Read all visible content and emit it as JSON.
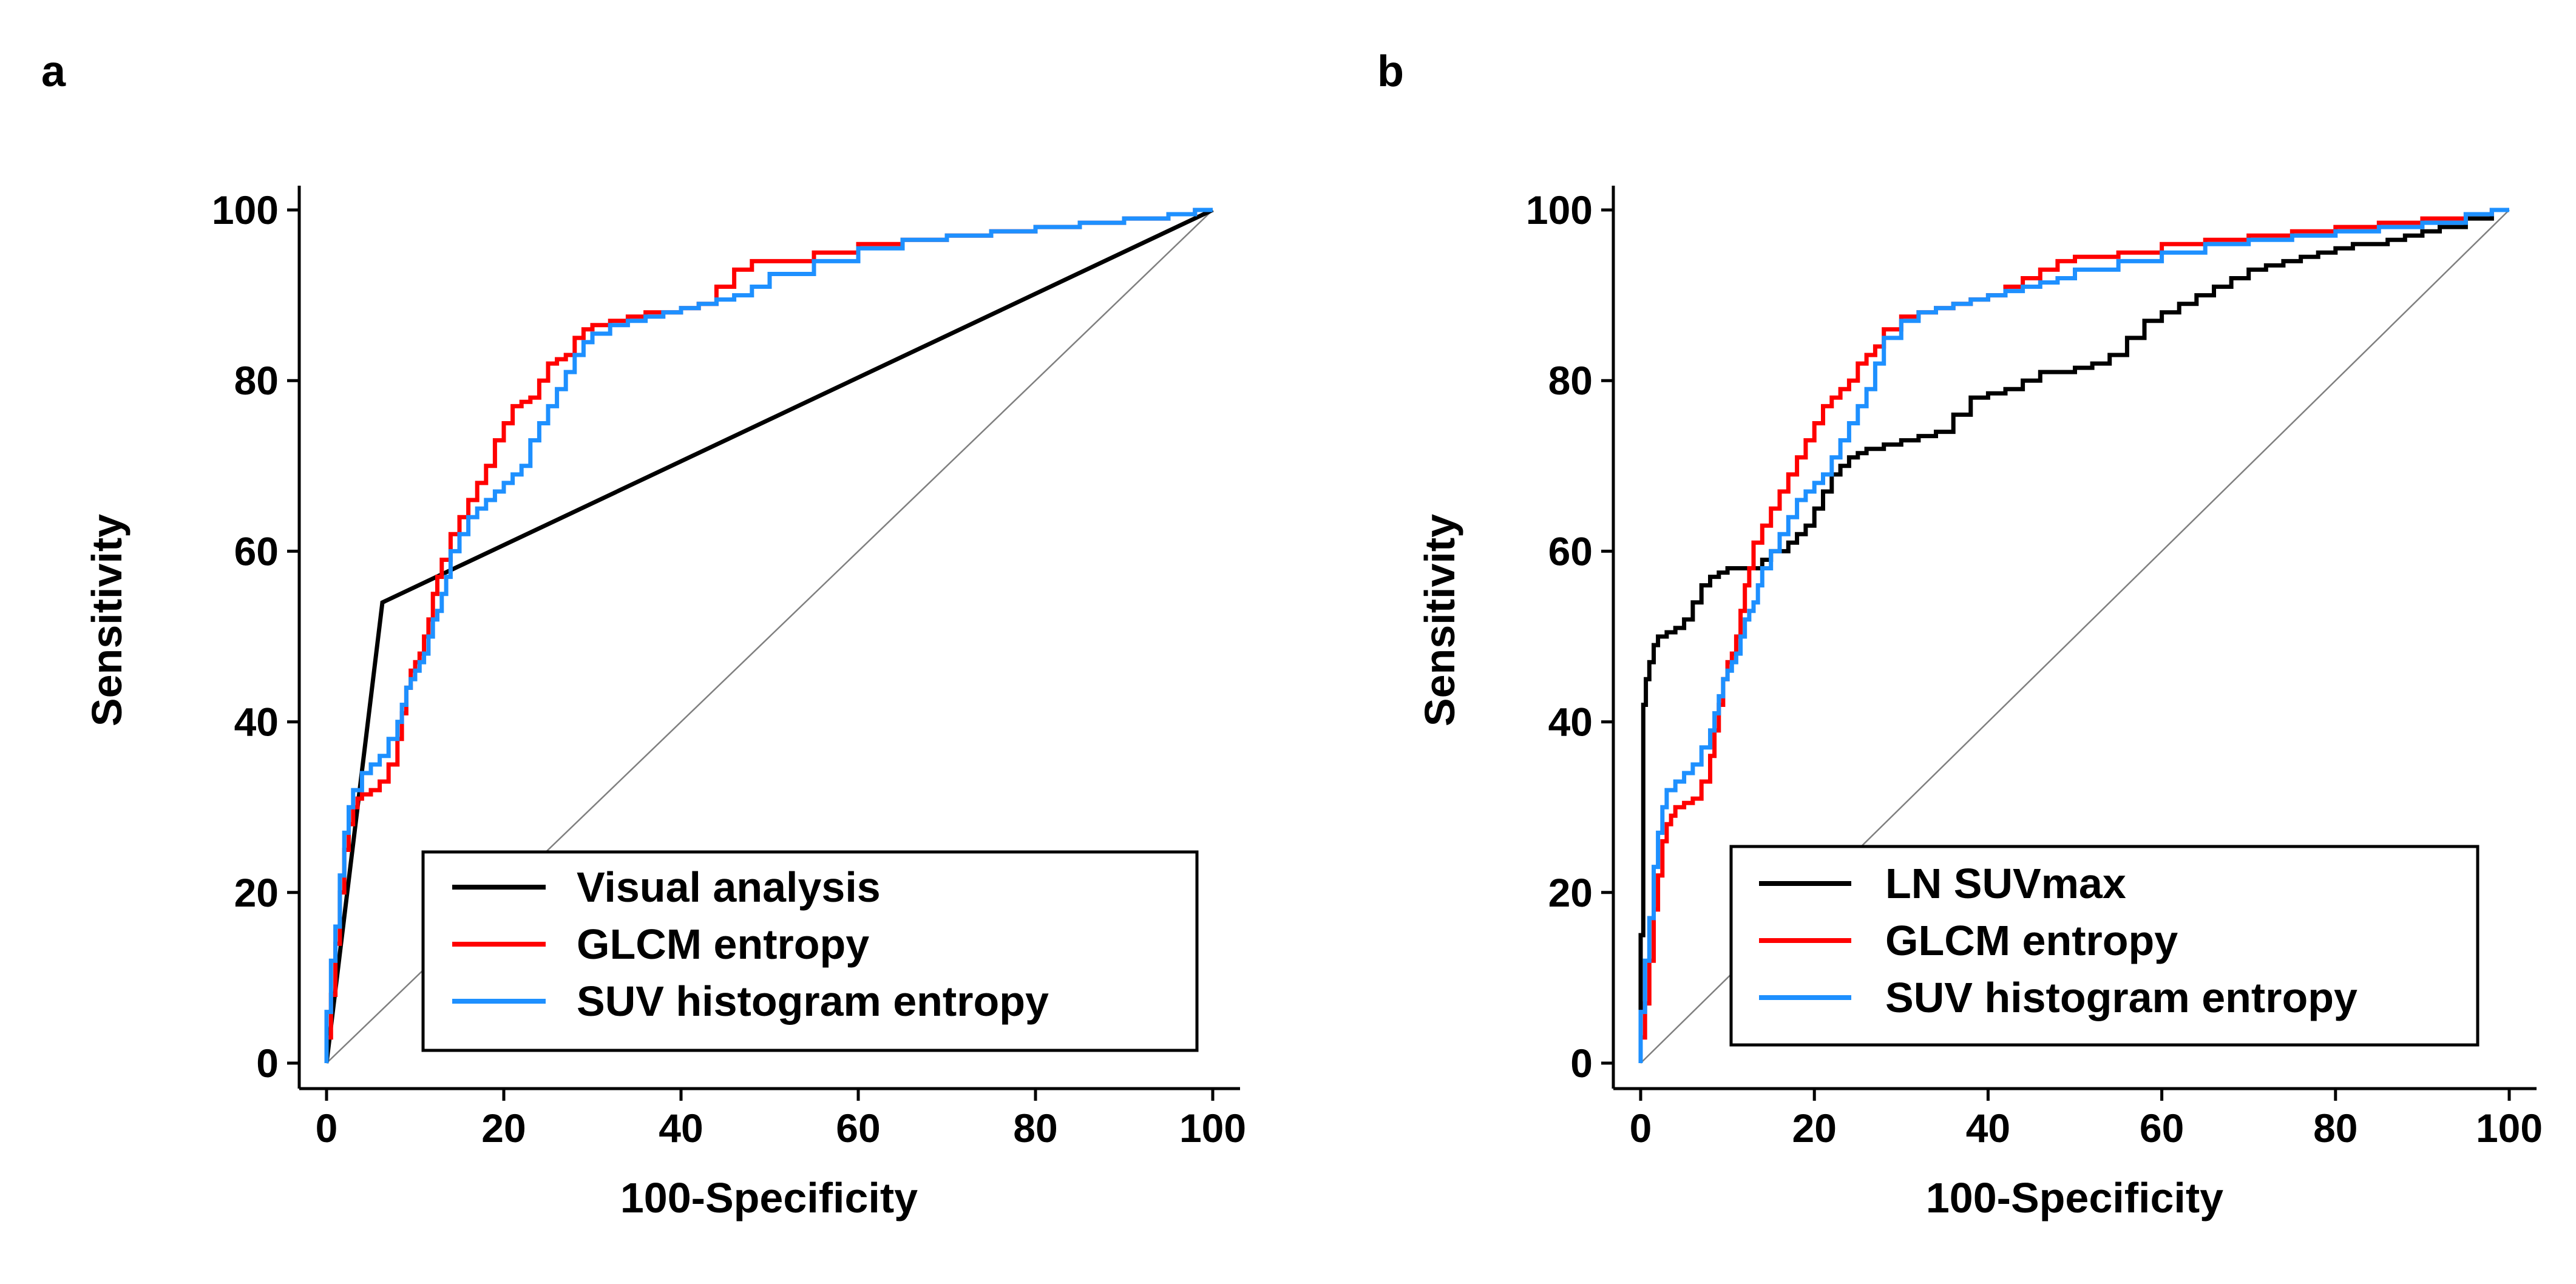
{
  "chart_data": [
    {
      "type": "line",
      "panel_label": "a",
      "xlabel": "100-Specificity",
      "ylabel": "Sensitivity",
      "xlim": [
        0,
        100
      ],
      "ylim": [
        0,
        100
      ],
      "xticks": [
        0,
        20,
        40,
        60,
        80,
        100
      ],
      "yticks": [
        0,
        20,
        40,
        60,
        80,
        100
      ],
      "grid": false,
      "legend_position": "bottom-right",
      "reference_line": {
        "x": [
          0,
          100
        ],
        "y": [
          0,
          100
        ],
        "color": "#7f7f7f"
      },
      "series": [
        {
          "name": "Visual analysis",
          "color": "#000000",
          "step": false,
          "x": [
            0,
            6.3,
            100
          ],
          "y": [
            0,
            54,
            100
          ]
        },
        {
          "name": "GLCM entropy",
          "color": "#ff0000",
          "step": true,
          "x": [
            0,
            0.5,
            1,
            1.5,
            2,
            2.5,
            3,
            3.5,
            4,
            5,
            6,
            7,
            8,
            8.5,
            9,
            9.5,
            10,
            10.5,
            11,
            11.5,
            12,
            12.5,
            13,
            14,
            15,
            16,
            17,
            18,
            19,
            20,
            21,
            22,
            23,
            24,
            25,
            26,
            27,
            28,
            29,
            30,
            32,
            34,
            36,
            38,
            40,
            42,
            44,
            46,
            48,
            50,
            55,
            60,
            65,
            70,
            75,
            80,
            85,
            90,
            95,
            98,
            100
          ],
          "y": [
            0,
            3,
            8,
            14,
            20,
            25,
            28,
            30,
            31,
            31.5,
            32,
            33,
            35,
            38,
            41,
            44,
            46,
            47,
            48,
            50,
            52,
            55,
            57,
            59,
            62,
            64,
            66,
            68,
            70,
            73,
            75,
            77,
            77.5,
            78,
            80,
            82,
            82.5,
            83,
            85,
            86,
            86.5,
            87,
            87.5,
            88,
            88,
            88.5,
            89,
            91,
            93,
            94,
            94,
            95,
            96,
            96.5,
            97,
            97.5,
            98,
            98.5,
            99,
            99.5,
            100
          ]
        },
        {
          "name": "SUV histogram entropy",
          "color": "#1e90ff",
          "step": true,
          "x": [
            0,
            0.5,
            1,
            1.5,
            2,
            2.5,
            3,
            4,
            5,
            6,
            7,
            8,
            8.5,
            9,
            9.5,
            10,
            10.5,
            11,
            11.5,
            12,
            12.5,
            13,
            13.5,
            14,
            15,
            16,
            17,
            18,
            19,
            20,
            21,
            22,
            23,
            24,
            25,
            26,
            27,
            28,
            29,
            30,
            32,
            34,
            36,
            38,
            40,
            42,
            44,
            46,
            48,
            50,
            55,
            60,
            65,
            70,
            75,
            80,
            85,
            90,
            95,
            98,
            100
          ],
          "y": [
            0,
            6,
            12,
            16,
            22,
            27,
            30,
            32,
            34,
            35,
            36,
            38,
            40,
            42,
            44,
            45,
            46,
            47,
            48,
            50,
            52,
            53,
            55,
            57,
            60,
            62,
            64,
            65,
            66,
            67,
            68,
            69,
            70,
            73,
            75,
            77,
            79,
            81,
            83,
            84.5,
            85.5,
            86.5,
            87,
            87.5,
            88,
            88.5,
            89,
            89.5,
            90,
            91,
            92.5,
            94,
            95.5,
            96.5,
            97,
            97.5,
            98,
            98.5,
            99,
            99.5,
            100
          ]
        }
      ]
    },
    {
      "type": "line",
      "panel_label": "b",
      "xlabel": "100-Specificity",
      "ylabel": "Sensitivity",
      "xlim": [
        0,
        100
      ],
      "ylim": [
        0,
        100
      ],
      "xticks": [
        0,
        20,
        40,
        60,
        80,
        100
      ],
      "yticks": [
        0,
        20,
        40,
        60,
        80,
        100
      ],
      "grid": false,
      "legend_position": "bottom-right",
      "reference_line": {
        "x": [
          0,
          100
        ],
        "y": [
          0,
          100
        ],
        "color": "#7f7f7f"
      },
      "series": [
        {
          "name": "LN SUVmax",
          "color": "#000000",
          "step": true,
          "x": [
            0,
            0.3,
            0.6,
            1,
            1.5,
            2,
            3,
            4,
            5,
            6,
            7,
            8,
            9,
            10,
            11,
            12,
            13,
            14,
            15,
            16,
            17,
            18,
            19,
            20,
            21,
            22,
            23,
            24,
            25,
            26,
            27,
            28,
            30,
            32,
            34,
            36,
            38,
            40,
            42,
            44,
            46,
            48,
            50,
            52,
            54,
            56,
            58,
            60,
            62,
            64,
            66,
            68,
            70,
            72,
            74,
            76,
            78,
            80,
            82,
            84,
            86,
            88,
            90,
            92,
            95,
            98,
            100
          ],
          "y": [
            0,
            15,
            42,
            45,
            47,
            49,
            50,
            50.5,
            51,
            52,
            54,
            56,
            57,
            57.5,
            58,
            58,
            58,
            58,
            59,
            60,
            60,
            61,
            62,
            63,
            65,
            67,
            69,
            70,
            71,
            71.5,
            72,
            72,
            72.5,
            73,
            73.5,
            74,
            76,
            78,
            78.5,
            79,
            80,
            81,
            81,
            81.5,
            82,
            83,
            85,
            87,
            88,
            89,
            90,
            91,
            92,
            93,
            93.5,
            94,
            94.5,
            95,
            95.5,
            96,
            96,
            96.5,
            97,
            97.5,
            98,
            99,
            100
          ]
        },
        {
          "name": "GLCM entropy",
          "color": "#ff0000",
          "step": true,
          "x": [
            0,
            0.5,
            1,
            1.5,
            2,
            2.5,
            3,
            3.5,
            4,
            5,
            6,
            7,
            8,
            8.5,
            9,
            9.5,
            10,
            10.5,
            11,
            11.5,
            12,
            12.5,
            13,
            14,
            15,
            16,
            17,
            18,
            19,
            20,
            21,
            22,
            23,
            24,
            25,
            26,
            27,
            28,
            30,
            32,
            34,
            36,
            38,
            40,
            42,
            44,
            46,
            48,
            50,
            55,
            60,
            65,
            70,
            75,
            80,
            85,
            90,
            95,
            98,
            100
          ],
          "y": [
            0,
            3,
            7,
            12,
            18,
            22,
            26,
            28,
            29,
            30,
            30.5,
            31,
            33,
            36,
            39,
            42,
            45,
            47,
            48,
            50,
            53,
            56,
            58,
            61,
            63,
            65,
            67,
            69,
            71,
            73,
            75,
            77,
            78,
            79,
            80,
            82,
            83,
            84,
            86,
            87.5,
            88,
            88.5,
            89,
            89.5,
            90,
            91,
            92,
            93,
            94,
            94.5,
            95,
            96,
            96.5,
            97,
            97.5,
            98,
            98.5,
            99,
            99.5,
            100
          ]
        },
        {
          "name": "SUV histogram entropy",
          "color": "#1e90ff",
          "step": true,
          "x": [
            0,
            0.5,
            1,
            1.5,
            2,
            2.5,
            3,
            4,
            5,
            6,
            7,
            8,
            8.5,
            9,
            9.5,
            10,
            10.5,
            11,
            11.5,
            12,
            12.5,
            13,
            13.5,
            14,
            15,
            16,
            17,
            18,
            19,
            20,
            21,
            22,
            23,
            24,
            25,
            26,
            27,
            28,
            30,
            32,
            34,
            36,
            38,
            40,
            42,
            44,
            46,
            48,
            50,
            55,
            60,
            65,
            70,
            75,
            80,
            85,
            90,
            95,
            98,
            100
          ],
          "y": [
            0,
            6,
            12,
            17,
            23,
            27,
            30,
            32,
            33,
            34,
            35,
            37,
            39,
            41,
            43,
            45,
            46,
            47,
            48,
            50,
            52,
            53,
            54,
            56,
            58,
            60,
            62,
            64,
            66,
            67,
            68,
            69,
            71,
            73,
            75,
            77,
            79,
            82,
            85,
            87,
            88,
            88.5,
            89,
            89.5,
            90,
            90.5,
            91,
            91.5,
            92,
            93,
            94,
            95,
            96,
            96.5,
            97,
            97.5,
            98,
            98.5,
            99.5,
            100
          ]
        }
      ]
    }
  ]
}
